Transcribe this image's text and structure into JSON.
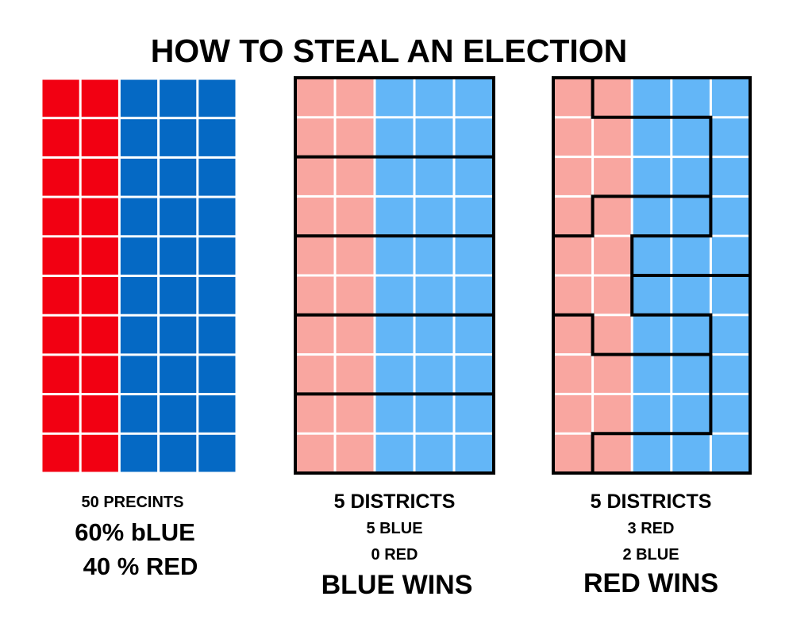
{
  "header": {
    "title": "HOW TO STEAL AN ELECTION"
  },
  "panels": [
    {
      "lines": [
        "50 PRECINTS",
        "60% bLUE",
        "40 % RED"
      ]
    },
    {
      "lines": [
        "5 DISTRICTS",
        "5 BLUE",
        "0 RED",
        "BLUE WINS"
      ]
    },
    {
      "lines": [
        "5 DISTRICTS",
        "3 RED",
        "2 BLUE",
        "RED WINS"
      ]
    }
  ]
}
